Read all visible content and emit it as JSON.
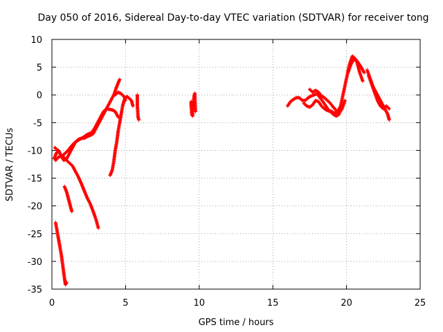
{
  "chart_data": {
    "type": "scatter",
    "title": "Day 050 of 2016, Sidereal Day-to-day VTEC variation (SDTVAR) for receiver tong",
    "xlabel": "GPS time / hours",
    "ylabel": "SDTVAR / TECUs",
    "xlim": [
      0,
      25
    ],
    "ylim": [
      -35,
      10
    ],
    "xticks": [
      0,
      5,
      10,
      15,
      20,
      25
    ],
    "yticks": [
      10,
      5,
      0,
      -5,
      -10,
      -15,
      -20,
      -25,
      -30,
      -35
    ],
    "xtick_labels": [
      "0",
      "5",
      "10",
      "15",
      "20",
      "25"
    ],
    "ytick_labels": [
      "10",
      "5",
      "0",
      "-5",
      "-10",
      "-15",
      "-20",
      "-25",
      "-30",
      "-35"
    ],
    "grid": true,
    "marker": "+",
    "color": "#ff0000",
    "segments": [
      [
        [
          0.15,
          -11.5
        ],
        [
          0.3,
          -10.5
        ],
        [
          0.45,
          -10.0
        ],
        [
          0.6,
          -10.8
        ],
        [
          0.8,
          -11.2
        ],
        [
          1.0,
          -11.8
        ],
        [
          1.2,
          -12.3
        ],
        [
          1.4,
          -12.8
        ],
        [
          1.6,
          -13.8
        ],
        [
          1.8,
          -14.8
        ],
        [
          2.0,
          -16.0
        ],
        [
          2.2,
          -17.3
        ],
        [
          2.4,
          -18.6
        ],
        [
          2.6,
          -19.6
        ],
        [
          2.8,
          -21.0
        ],
        [
          3.0,
          -22.5
        ],
        [
          3.15,
          -24.0
        ]
      ],
      [
        [
          0.2,
          -9.5
        ],
        [
          0.4,
          -10.0
        ],
        [
          0.6,
          -10.8
        ],
        [
          0.8,
          -11.8
        ],
        [
          1.0,
          -11.5
        ],
        [
          1.2,
          -10.5
        ],
        [
          1.4,
          -9.5
        ],
        [
          1.6,
          -8.5
        ],
        [
          1.8,
          -8.0
        ],
        [
          2.0,
          -7.8
        ],
        [
          2.2,
          -7.8
        ],
        [
          2.4,
          -7.5
        ],
        [
          2.6,
          -7.3
        ],
        [
          2.8,
          -7.0
        ],
        [
          3.0,
          -6.0
        ],
        [
          3.2,
          -5.0
        ],
        [
          3.4,
          -4.0
        ],
        [
          3.6,
          -3.0
        ],
        [
          3.8,
          -2.0
        ],
        [
          4.0,
          -1.0
        ],
        [
          4.2,
          0.0
        ],
        [
          4.4,
          1.5
        ],
        [
          4.6,
          2.8
        ]
      ],
      [
        [
          0.25,
          -11.8
        ],
        [
          0.45,
          -11.2
        ],
        [
          0.7,
          -11.0
        ],
        [
          0.9,
          -10.5
        ],
        [
          1.1,
          -10.0
        ],
        [
          1.3,
          -9.3
        ],
        [
          1.5,
          -8.7
        ],
        [
          1.7,
          -8.3
        ],
        [
          1.9,
          -8.0
        ],
        [
          2.1,
          -7.7
        ],
        [
          2.3,
          -7.3
        ],
        [
          2.5,
          -7.0
        ],
        [
          2.7,
          -6.8
        ],
        [
          2.9,
          -6.0
        ],
        [
          3.1,
          -5.0
        ],
        [
          3.3,
          -4.0
        ],
        [
          3.5,
          -3.0
        ],
        [
          3.7,
          -2.5
        ],
        [
          3.9,
          -2.6
        ],
        [
          4.1,
          -2.7
        ],
        [
          4.3,
          -3.0
        ],
        [
          4.5,
          -4.0
        ]
      ],
      [
        [
          3.95,
          -14.5
        ],
        [
          4.1,
          -13.5
        ],
        [
          4.2,
          -12.0
        ],
        [
          4.3,
          -10.0
        ],
        [
          4.4,
          -8.5
        ],
        [
          4.5,
          -6.5
        ],
        [
          4.6,
          -5.0
        ],
        [
          4.7,
          -3.5
        ],
        [
          4.8,
          -2.0
        ],
        [
          4.9,
          -1.0
        ],
        [
          5.0,
          -0.5
        ],
        [
          5.1,
          -0.3
        ],
        [
          5.2,
          -0.5
        ],
        [
          5.4,
          -1.0
        ],
        [
          5.5,
          -2.0
        ]
      ],
      [
        [
          4.3,
          0.0
        ],
        [
          4.5,
          0.5
        ],
        [
          4.7,
          0.2
        ],
        [
          4.9,
          -0.3
        ],
        [
          5.0,
          -1.0
        ]
      ],
      [
        [
          5.8,
          0.0
        ],
        [
          5.8,
          -1.0
        ],
        [
          5.8,
          -2.0
        ],
        [
          5.85,
          -4.0
        ],
        [
          5.9,
          -4.5
        ]
      ],
      [
        [
          0.25,
          -23.0
        ],
        [
          0.35,
          -24.5
        ],
        [
          0.45,
          -26.0
        ],
        [
          0.55,
          -27.5
        ],
        [
          0.65,
          -29.0
        ],
        [
          0.75,
          -31.0
        ],
        [
          0.85,
          -33.0
        ],
        [
          0.92,
          -34.2
        ],
        [
          1.0,
          -33.8
        ]
      ],
      [
        [
          0.85,
          -16.5
        ],
        [
          1.0,
          -17.5
        ],
        [
          1.1,
          -18.5
        ],
        [
          1.2,
          -19.5
        ],
        [
          1.3,
          -20.5
        ],
        [
          1.35,
          -21.0
        ]
      ],
      [
        [
          9.45,
          -1.2
        ],
        [
          9.45,
          -2.0
        ],
        [
          9.5,
          -3.5
        ],
        [
          9.55,
          -3.8
        ],
        [
          9.6,
          -1.5
        ],
        [
          9.65,
          -0.3
        ],
        [
          9.7,
          0.3
        ],
        [
          9.75,
          -3.0
        ]
      ],
      [
        [
          16.0,
          -2.0
        ],
        [
          16.2,
          -1.2
        ],
        [
          16.4,
          -0.8
        ],
        [
          16.6,
          -0.5
        ],
        [
          16.8,
          -0.5
        ],
        [
          17.0,
          -1.0
        ],
        [
          17.2,
          -1.0
        ],
        [
          17.4,
          -0.5
        ],
        [
          17.6,
          -0.2
        ],
        [
          17.8,
          0.0
        ],
        [
          18.0,
          0.2
        ],
        [
          18.2,
          -0.5
        ],
        [
          18.4,
          -1.2
        ],
        [
          18.6,
          -2.0
        ],
        [
          18.8,
          -2.8
        ],
        [
          19.0,
          -3.0
        ],
        [
          19.2,
          -3.3
        ],
        [
          19.4,
          -3.0
        ],
        [
          19.6,
          -2.0
        ],
        [
          19.8,
          0.5
        ],
        [
          20.0,
          3.0
        ],
        [
          20.2,
          5.5
        ],
        [
          20.4,
          7.0
        ],
        [
          20.6,
          6.5
        ],
        [
          20.8,
          5.8
        ],
        [
          21.0,
          5.0
        ],
        [
          21.2,
          4.0
        ]
      ],
      [
        [
          17.5,
          1.0
        ],
        [
          17.7,
          0.5
        ],
        [
          17.9,
          0.8
        ],
        [
          18.1,
          0.5
        ],
        [
          18.3,
          -0.2
        ],
        [
          18.5,
          -0.5
        ],
        [
          18.7,
          -1.0
        ],
        [
          18.9,
          -1.5
        ],
        [
          19.1,
          -2.2
        ],
        [
          19.3,
          -2.8
        ],
        [
          19.5,
          -3.3
        ],
        [
          19.7,
          -2.5
        ],
        [
          19.9,
          -1.0
        ]
      ],
      [
        [
          17.1,
          -1.5
        ],
        [
          17.3,
          -2.0
        ],
        [
          17.5,
          -2.2
        ],
        [
          17.7,
          -1.8
        ],
        [
          17.9,
          -1.0
        ],
        [
          18.1,
          -1.2
        ],
        [
          18.3,
          -2.0
        ],
        [
          18.5,
          -2.5
        ],
        [
          18.7,
          -2.8
        ],
        [
          18.9,
          -3.0
        ],
        [
          19.1,
          -3.5
        ],
        [
          19.3,
          -3.8
        ],
        [
          19.5,
          -3.5
        ]
      ],
      [
        [
          20.1,
          4.0
        ],
        [
          20.3,
          5.5
        ],
        [
          20.5,
          6.5
        ],
        [
          20.7,
          6.0
        ],
        [
          20.9,
          4.0
        ],
        [
          21.1,
          2.5
        ]
      ],
      [
        [
          21.4,
          4.5
        ],
        [
          21.6,
          3.0
        ],
        [
          21.8,
          1.5
        ],
        [
          22.0,
          0.5
        ],
        [
          22.2,
          -0.5
        ],
        [
          22.4,
          -1.5
        ],
        [
          22.6,
          -2.5
        ],
        [
          22.8,
          -3.5
        ],
        [
          22.9,
          -4.5
        ]
      ],
      [
        [
          21.5,
          3.5
        ],
        [
          21.7,
          2.0
        ],
        [
          21.9,
          0.5
        ],
        [
          22.1,
          -1.0
        ],
        [
          22.3,
          -2.0
        ],
        [
          22.5,
          -2.5
        ],
        [
          22.7,
          -2.0
        ],
        [
          22.9,
          -2.5
        ]
      ]
    ]
  }
}
